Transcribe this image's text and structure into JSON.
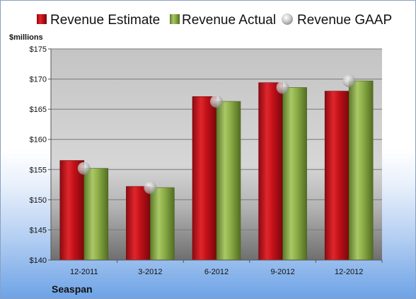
{
  "chart_data": {
    "type": "bar",
    "ylabel": "$millions",
    "ylim": [
      140,
      175
    ],
    "yticks": [
      "$140",
      "$145",
      "$150",
      "$155",
      "$160",
      "$165",
      "$170",
      "$175"
    ],
    "categories": [
      "12-2011",
      "3-2012",
      "6-2012",
      "9-2012",
      "12-2012"
    ],
    "series": [
      {
        "name": "Revenue Estimate",
        "kind": "bar",
        "color": "#c0101a",
        "values": [
          156.5,
          152.2,
          167.1,
          169.4,
          168.0
        ]
      },
      {
        "name": "Revenue Actual",
        "kind": "bar",
        "color": "#8fb04a",
        "values": [
          155.2,
          152.0,
          166.3,
          168.6,
          169.7
        ]
      },
      {
        "name": "Revenue GAAP",
        "kind": "marker",
        "color": "#c8c8c8",
        "values": [
          155.2,
          152.0,
          166.3,
          168.6,
          169.7
        ]
      }
    ],
    "legend_position": "top",
    "grid": true,
    "caption": "Seaspan"
  }
}
